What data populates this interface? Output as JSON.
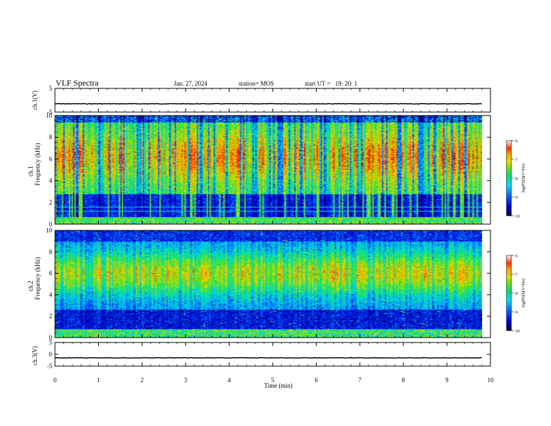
{
  "header": {
    "title": "VLF Spectra",
    "date": "Jan. 27, 2024",
    "station": "station= MOS",
    "start_ut": "start UT =   19: 20: 1"
  },
  "colors": {
    "colormap": [
      "#000040",
      "#0000c8",
      "#0050ff",
      "#00c8ff",
      "#00e6a0",
      "#40e020",
      "#d8e000",
      "#ffb000",
      "#ff4000",
      "#d80000"
    ],
    "trace": "#000000",
    "line": "#00ffff"
  },
  "chart_data": [
    {
      "type": "line",
      "name": "ch1-voltage",
      "ylabel": "ch.1(V)",
      "ylim": [
        -5,
        5
      ],
      "yticks": [
        5,
        -5
      ],
      "x_range": [
        0,
        9.8
      ],
      "y_value": -1.5
    },
    {
      "type": "heatmap",
      "name": "ch1-spectrogram",
      "ylabel_channel": "ch.1",
      "ylabel": "Frequency (kHz)",
      "ylim": [
        0,
        10
      ],
      "yticks": [
        0,
        2,
        4,
        6,
        8,
        10
      ],
      "x_range": [
        0,
        9.8
      ],
      "colorbar": {
        "label": "log(PSD)(V²/Hz)",
        "range": [
          -10,
          -6
        ],
        "ticks": [
          -6,
          -7,
          -8,
          -9,
          -10
        ]
      }
    },
    {
      "type": "heatmap",
      "name": "ch2-spectrogram",
      "ylabel_channel": "ch.2",
      "ylabel": "Frequency (kHz)",
      "ylim": [
        0,
        10
      ],
      "yticks": [
        0,
        2,
        4,
        6,
        8,
        10
      ],
      "x_range": [
        0,
        9.8
      ],
      "colorbar": {
        "label": "log(PSD)(V²/Hz)",
        "range": [
          -10,
          -6
        ],
        "ticks": [
          -6,
          -7,
          -8,
          -9,
          -10
        ]
      }
    },
    {
      "type": "line",
      "name": "ch3-voltage",
      "ylabel": "ch.3(V)",
      "ylim": [
        -5,
        5
      ],
      "yticks": [
        5,
        0,
        -5
      ],
      "x_range": [
        0,
        9.8
      ],
      "y_value": -1.5
    }
  ],
  "xaxis": {
    "label": "Time (min)",
    "range": [
      0,
      10
    ],
    "ticks": [
      0,
      1,
      2,
      3,
      4,
      5,
      6,
      7,
      8,
      9,
      10
    ]
  }
}
